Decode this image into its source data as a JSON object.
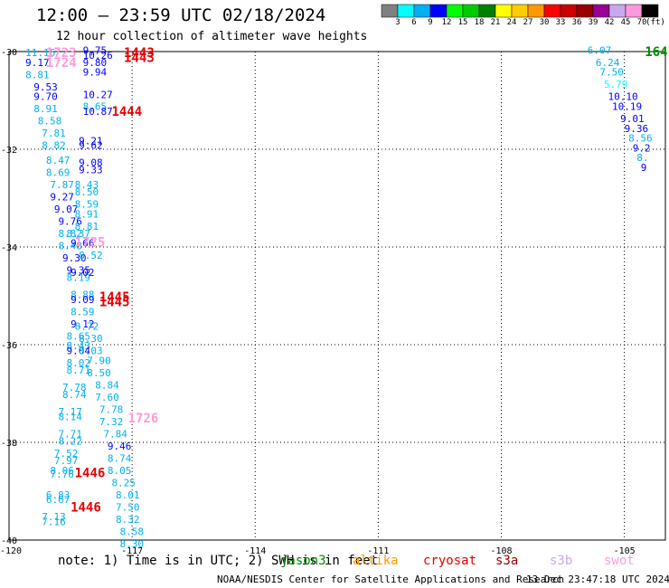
{
  "header": {
    "title": "12:00 – 23:59 UTC 02/18/2024",
    "subtitle": "12 hour collection of altimeter wave heights"
  },
  "footer": {
    "note": "note: 1) Time is in UTC; 2) SWH is in feet",
    "credit": "NOAA/NESDIS Center for Satellite Applications and Research",
    "timestamp": "13 Dec 23:47:18 UTC 2024"
  },
  "satellites": [
    {
      "name": "jason3",
      "color": "#008a00"
    },
    {
      "name": "altika",
      "color": "#ff9900"
    },
    {
      "name": "cryosat",
      "color": "#e60000"
    },
    {
      "name": "s3a",
      "color": "#990000"
    },
    {
      "name": "s3b",
      "color": "#c8a8ee"
    },
    {
      "name": "swot",
      "color": "#ff99dd"
    }
  ],
  "colorbar": {
    "colors": [
      "#808080",
      "#00ffff",
      "#00b0f0",
      "#0000ff",
      "#00ff00",
      "#00cc00",
      "#008000",
      "#ffff00",
      "#ffcc00",
      "#ff9900",
      "#ff0000",
      "#cc0000",
      "#990000",
      "#990099",
      "#c8a8ee",
      "#ff99dd",
      "#000000"
    ],
    "labels": [
      "3",
      "6",
      "9",
      "12",
      "15",
      "18",
      "21",
      "24",
      "27",
      "30",
      "33",
      "36",
      "39",
      "42",
      "45",
      "70"
    ],
    "unit": "(ft)"
  },
  "chart_data": {
    "type": "scatter",
    "xlim": [
      -120,
      -104
    ],
    "ylim": [
      -40,
      -30
    ],
    "xticks": [
      -120,
      -117,
      -114,
      -111,
      -108,
      -105
    ],
    "xtick_labels": [
      "-120",
      "-117",
      "-114",
      "-111",
      "-108",
      "-105"
    ],
    "yticks": [
      -30,
      -32,
      -34,
      -36,
      -38,
      -40
    ],
    "ytick_labels": [
      "-30",
      "-32",
      "-34",
      "-36",
      "-38",
      "-40"
    ],
    "grid": true,
    "wave_labels": [
      {
        "x": -119.6,
        "y": -30.02,
        "text": "11.16",
        "color": "#00b0f0"
      },
      {
        "x": -119.6,
        "y": -30.22,
        "text": "9.17",
        "color": "#0000ff"
      },
      {
        "x": -119.6,
        "y": -30.47,
        "text": "8.81",
        "color": "#00b0f0"
      },
      {
        "x": -119.4,
        "y": -30.72,
        "text": "9.53",
        "color": "#0000ff"
      },
      {
        "x": -119.4,
        "y": -30.92,
        "text": "9.70",
        "color": "#0000ff"
      },
      {
        "x": -119.4,
        "y": -31.17,
        "text": "8.91",
        "color": "#00b0f0"
      },
      {
        "x": -119.3,
        "y": -31.42,
        "text": "8.58",
        "color": "#00b0f0"
      },
      {
        "x": -119.2,
        "y": -31.67,
        "text": "7.81",
        "color": "#00b0f0"
      },
      {
        "x": -119.2,
        "y": -31.92,
        "text": "8.82",
        "color": "#00b0f0"
      },
      {
        "x": -119.1,
        "y": -32.22,
        "text": "8.47",
        "color": "#00b0f0"
      },
      {
        "x": -119.1,
        "y": -32.47,
        "text": "8.69",
        "color": "#00b0f0"
      },
      {
        "x": -119.0,
        "y": -32.72,
        "text": "7.87",
        "color": "#00b0f0"
      },
      {
        "x": -119.0,
        "y": -32.97,
        "text": "9.27",
        "color": "#0000ff"
      },
      {
        "x": -118.9,
        "y": -33.22,
        "text": "9.07",
        "color": "#0000ff"
      },
      {
        "x": -118.8,
        "y": -33.47,
        "text": "9.76",
        "color": "#0000ff"
      },
      {
        "x": -118.8,
        "y": -33.72,
        "text": "8.82",
        "color": "#00b0f0"
      },
      {
        "x": -118.8,
        "y": -33.97,
        "text": "8.48",
        "color": "#00b0f0"
      },
      {
        "x": -118.7,
        "y": -34.22,
        "text": "9.30",
        "color": "#0000ff"
      },
      {
        "x": -118.6,
        "y": -34.47,
        "text": "9.35",
        "color": "#0000ff"
      },
      {
        "x": -118.6,
        "y": -34.62,
        "text": "8.19",
        "color": "#00b0f0"
      },
      {
        "x": -118.5,
        "y": -34.97,
        "text": "8.88",
        "color": "#00b0f0"
      },
      {
        "x": -118.5,
        "y": -35.07,
        "text": "9.09",
        "color": "#0000ff"
      },
      {
        "x": -118.5,
        "y": -35.32,
        "text": "8.59",
        "color": "#00b0f0"
      },
      {
        "x": -118.5,
        "y": -35.57,
        "text": "9.12",
        "color": "#0000ff"
      },
      {
        "x": -118.6,
        "y": -35.82,
        "text": "8.65",
        "color": "#00b0f0"
      },
      {
        "x": -118.6,
        "y": -36.02,
        "text": "8.43",
        "color": "#00b0f0"
      },
      {
        "x": -118.6,
        "y": -36.12,
        "text": "9.04",
        "color": "#0000ff"
      },
      {
        "x": -118.6,
        "y": -36.37,
        "text": "8.02",
        "color": "#00b0f0"
      },
      {
        "x": -118.6,
        "y": -36.52,
        "text": "8.71",
        "color": "#00b0f0"
      },
      {
        "x": -118.7,
        "y": -36.87,
        "text": "7.78",
        "color": "#00b0f0"
      },
      {
        "x": -118.7,
        "y": -37.02,
        "text": "8.74",
        "color": "#00b0f0"
      },
      {
        "x": -118.8,
        "y": -37.37,
        "text": "7.17",
        "color": "#00b0f0"
      },
      {
        "x": -118.8,
        "y": -37.47,
        "text": "8.14",
        "color": "#00b0f0"
      },
      {
        "x": -118.8,
        "y": -37.82,
        "text": "7.71",
        "color": "#00b0f0"
      },
      {
        "x": -118.8,
        "y": -37.97,
        "text": "8.22",
        "color": "#00b0f0"
      },
      {
        "x": -118.9,
        "y": -38.22,
        "text": "7.52",
        "color": "#00b0f0"
      },
      {
        "x": -118.9,
        "y": -38.37,
        "text": "7.97",
        "color": "#00b0f0"
      },
      {
        "x": -119.0,
        "y": -38.57,
        "text": "8.06",
        "color": "#00b0f0"
      },
      {
        "x": -119.0,
        "y": -38.65,
        "text": "7.76",
        "color": "#00b0f0"
      },
      {
        "x": -119.1,
        "y": -39.07,
        "text": "6.83",
        "color": "#00b0f0"
      },
      {
        "x": -119.1,
        "y": -39.17,
        "text": "6.67",
        "color": "#00b0f0"
      },
      {
        "x": -119.2,
        "y": -39.52,
        "text": "7.13",
        "color": "#00b0f0"
      },
      {
        "x": -119.2,
        "y": -39.62,
        "text": "7.16",
        "color": "#00b0f0"
      },
      {
        "x": -118.2,
        "y": -29.97,
        "text": "9.75",
        "color": "#0000ff"
      },
      {
        "x": -118.2,
        "y": -30.07,
        "text": "10.26",
        "color": "#0000ff"
      },
      {
        "x": -118.2,
        "y": -30.22,
        "text": "9.80",
        "color": "#0000ff"
      },
      {
        "x": -118.2,
        "y": -30.42,
        "text": "9.94",
        "color": "#0000ff"
      },
      {
        "x": -118.2,
        "y": -30.88,
        "text": "10.27",
        "color": "#0000ff"
      },
      {
        "x": -118.2,
        "y": -31.12,
        "text": "8.65",
        "color": "#00b0f0"
      },
      {
        "x": -118.2,
        "y": -31.22,
        "text": "10.87",
        "color": "#0000ff"
      },
      {
        "x": -118.3,
        "y": -31.82,
        "text": "9.21",
        "color": "#0000ff"
      },
      {
        "x": -118.3,
        "y": -31.92,
        "text": "9.62",
        "color": "#0000ff"
      },
      {
        "x": -118.3,
        "y": -32.27,
        "text": "9.08",
        "color": "#0000ff"
      },
      {
        "x": -118.3,
        "y": -32.42,
        "text": "9.33",
        "color": "#0000ff"
      },
      {
        "x": -118.4,
        "y": -32.72,
        "text": "8.43",
        "color": "#00b0f0"
      },
      {
        "x": -118.4,
        "y": -32.87,
        "text": "8.50",
        "color": "#00b0f0"
      },
      {
        "x": -118.4,
        "y": -33.12,
        "text": "8.59",
        "color": "#00b0f0"
      },
      {
        "x": -118.4,
        "y": -33.32,
        "text": "8.91",
        "color": "#00b0f0"
      },
      {
        "x": -118.4,
        "y": -33.57,
        "text": "8.81",
        "color": "#00b0f0"
      },
      {
        "x": -118.6,
        "y": -33.72,
        "text": "8.37",
        "color": "#00b0f0"
      },
      {
        "x": -118.5,
        "y": -33.92,
        "text": "9.66",
        "color": "#0000ff"
      },
      {
        "x": -118.3,
        "y": -34.17,
        "text": "8.52",
        "color": "#00b0f0"
      },
      {
        "x": -118.5,
        "y": -34.52,
        "text": "9.02",
        "color": "#0000ff"
      },
      {
        "x": -118.4,
        "y": -35.62,
        "text": "8.72",
        "color": "#00b0f0"
      },
      {
        "x": -118.3,
        "y": -35.87,
        "text": "8.30",
        "color": "#00b0f0"
      },
      {
        "x": -118.3,
        "y": -36.12,
        "text": "8.03",
        "color": "#00b0f0"
      },
      {
        "x": -118.1,
        "y": -36.32,
        "text": "7.90",
        "color": "#00b0f0"
      },
      {
        "x": -118.1,
        "y": -36.57,
        "text": "8.50",
        "color": "#00b0f0"
      },
      {
        "x": -117.9,
        "y": -36.82,
        "text": "8.84",
        "color": "#00b0f0"
      },
      {
        "x": -117.9,
        "y": -37.07,
        "text": "7.60",
        "color": "#00b0f0"
      },
      {
        "x": -117.8,
        "y": -37.32,
        "text": "7.78",
        "color": "#00b0f0"
      },
      {
        "x": -117.8,
        "y": -37.57,
        "text": "7.32",
        "color": "#00b0f0"
      },
      {
        "x": -117.7,
        "y": -37.82,
        "text": "7.84",
        "color": "#00b0f0"
      },
      {
        "x": -117.6,
        "y": -38.07,
        "text": "9.46",
        "color": "#0000ff"
      },
      {
        "x": -117.6,
        "y": -38.32,
        "text": "8.74",
        "color": "#00b0f0"
      },
      {
        "x": -117.6,
        "y": -38.57,
        "text": "8.05",
        "color": "#00b0f0"
      },
      {
        "x": -117.5,
        "y": -38.82,
        "text": "8.25",
        "color": "#00b0f0"
      },
      {
        "x": -117.4,
        "y": -39.07,
        "text": "8.01",
        "color": "#00b0f0"
      },
      {
        "x": -117.4,
        "y": -39.32,
        "text": "7.50",
        "color": "#00b0f0"
      },
      {
        "x": -117.4,
        "y": -39.57,
        "text": "8.32",
        "color": "#00b0f0"
      },
      {
        "x": -117.3,
        "y": -39.82,
        "text": "8.58",
        "color": "#00b0f0"
      },
      {
        "x": -117.3,
        "y": -40.07,
        "text": "8.30",
        "color": "#00b0f0"
      },
      {
        "x": -105.9,
        "y": -29.97,
        "text": "6.07",
        "color": "#00b0f0"
      },
      {
        "x": -105.7,
        "y": -30.22,
        "text": "6.24",
        "color": "#00b0f0"
      },
      {
        "x": -105.6,
        "y": -30.42,
        "text": "7.50",
        "color": "#00b0f0"
      },
      {
        "x": -105.5,
        "y": -30.67,
        "text": "5.79",
        "color": "#00ffff"
      },
      {
        "x": -105.4,
        "y": -30.92,
        "text": "10.10",
        "color": "#0000ff"
      },
      {
        "x": -105.3,
        "y": -31.12,
        "text": "10.19",
        "color": "#0000ff"
      },
      {
        "x": -105.1,
        "y": -31.37,
        "text": "9.01",
        "color": "#0000ff"
      },
      {
        "x": -105.0,
        "y": -31.57,
        "text": "9.36",
        "color": "#0000ff"
      },
      {
        "x": -104.9,
        "y": -31.77,
        "text": "8.56",
        "color": "#00b0f0"
      },
      {
        "x": -104.8,
        "y": -31.97,
        "text": "9.2",
        "color": "#0000ff"
      },
      {
        "x": -104.7,
        "y": -32.17,
        "text": "8.",
        "color": "#00b0f0"
      },
      {
        "x": -104.6,
        "y": -32.37,
        "text": "9",
        "color": "#0000ff"
      }
    ],
    "pass_labels": [
      {
        "x": -119.1,
        "y": -30.02,
        "text": "1723",
        "color": "#ff99dd"
      },
      {
        "x": -119.1,
        "y": -30.22,
        "text": "1724",
        "color": "#ff99dd"
      },
      {
        "x": -118.4,
        "y": -33.9,
        "text": "1725",
        "color": "#ff99dd"
      },
      {
        "x": -117.1,
        "y": -37.5,
        "text": "1726",
        "color": "#ff99dd"
      },
      {
        "x": -117.2,
        "y": -30.02,
        "text": "1443",
        "color": "#e60000"
      },
      {
        "x": -117.2,
        "y": -30.12,
        "text": "1443",
        "color": "#e60000"
      },
      {
        "x": -117.5,
        "y": -31.22,
        "text": "1444",
        "color": "#e60000"
      },
      {
        "x": -117.8,
        "y": -35.02,
        "text": "1445",
        "color": "#e60000"
      },
      {
        "x": -117.8,
        "y": -35.12,
        "text": "1445",
        "color": "#e60000"
      },
      {
        "x": -118.4,
        "y": -38.62,
        "text": "1446",
        "color": "#e60000"
      },
      {
        "x": -118.5,
        "y": -39.32,
        "text": "1446",
        "color": "#e60000"
      },
      {
        "x": -104.5,
        "y": -30.0,
        "text": "164",
        "color": "#008a00"
      }
    ]
  }
}
